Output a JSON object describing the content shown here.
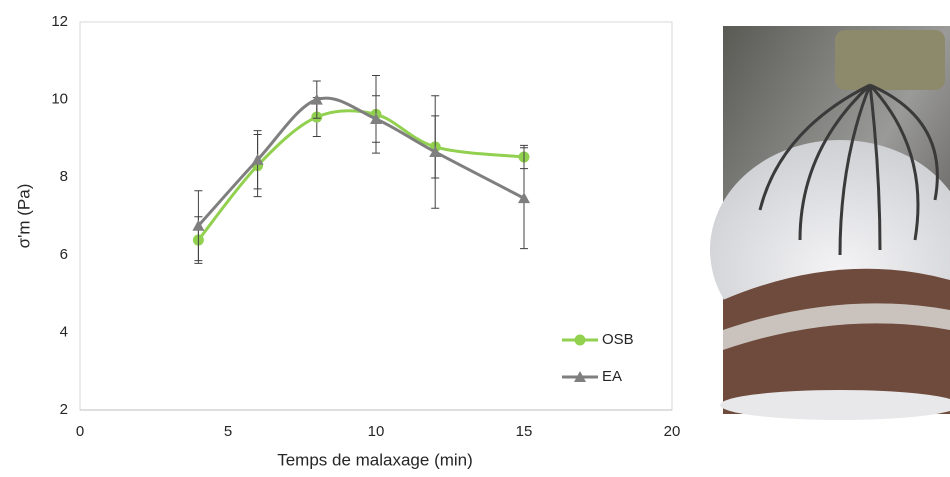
{
  "chart_data": {
    "type": "line",
    "smooth": true,
    "xlabel": "Temps de malaxage (min)",
    "ylabel": "σ'm (Pa)",
    "xlim": [
      0,
      20
    ],
    "xticks": [
      0,
      5,
      10,
      15,
      20
    ],
    "ylim": [
      2,
      12
    ],
    "yticks": [
      2,
      4,
      6,
      8,
      10,
      12
    ],
    "legend": "lower right",
    "series": [
      {
        "name": "OSB",
        "color": "#92d050",
        "marker": "circle",
        "x": [
          4,
          6,
          8,
          10,
          12,
          15
        ],
        "values": [
          6.38,
          8.3,
          9.55,
          9.62,
          8.78,
          8.52
        ],
        "errors": [
          0.6,
          0.8,
          0.5,
          1.0,
          0.8,
          0.3
        ]
      },
      {
        "name": "EA",
        "color": "#7f7f7f",
        "marker": "triangle",
        "x": [
          4,
          6,
          8,
          10,
          12,
          15
        ],
        "values": [
          6.75,
          8.45,
          10.0,
          9.5,
          8.65,
          7.46
        ],
        "errors": [
          0.9,
          0.75,
          0.48,
          0.6,
          1.45,
          1.3
        ]
      }
    ]
  }
}
